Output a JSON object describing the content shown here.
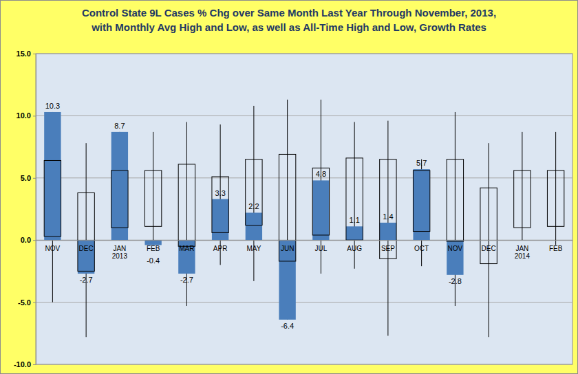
{
  "chart_data": {
    "type": "bar",
    "title": "Control State 9L Cases % Chg over Same Month Last Year Through November, 2013,\nwith Monthly Avg High and Low, as well as All-Time High and Low,  Growth Rates",
    "categories": [
      "NOV",
      "DEC",
      "JAN 2013",
      "FEB",
      "MAR",
      "APR",
      "MAY",
      "JUN",
      "JUL",
      "AUG",
      "SEP",
      "OCT",
      "NOV",
      "DEC",
      "JAN 2014",
      "FEB"
    ],
    "values": [
      10.3,
      -2.7,
      8.7,
      -0.4,
      -2.7,
      3.3,
      2.2,
      -6.4,
      4.8,
      1.1,
      1.4,
      5.7,
      -2.8,
      null,
      null,
      null
    ],
    "color": "#4a7ebb",
    "avg_high": [
      6.4,
      3.8,
      5.6,
      5.6,
      6.1,
      5.1,
      6.5,
      6.9,
      5.8,
      6.6,
      6.5,
      5.6,
      6.5,
      4.2,
      5.6,
      5.6
    ],
    "avg_low": [
      0.3,
      -2.5,
      1.0,
      1.1,
      -0.5,
      0.6,
      1.2,
      -1.7,
      0.4,
      0.0,
      -1.5,
      0.7,
      -0.1,
      -1.9,
      1.0,
      1.1
    ],
    "all_time_high": [
      10.3,
      7.8,
      8.7,
      8.7,
      9.5,
      9.3,
      10.8,
      11.3,
      11.3,
      9.5,
      9.6,
      6.5,
      10.3,
      7.8,
      8.7,
      8.7
    ],
    "all_time_low": [
      -5.0,
      -7.8,
      0.0,
      -0.4,
      -5.3,
      -2.0,
      -3.3,
      -6.4,
      -2.7,
      -2.3,
      -7.7,
      -2.1,
      -5.3,
      -7.8,
      0.0,
      -0.4
    ],
    "ylim": [
      -10,
      15
    ],
    "yticks": [
      {
        "value": -10,
        "label": "-10.0"
      },
      {
        "value": -5,
        "label": "-5.0"
      },
      {
        "value": 0,
        "label": "0.0"
      },
      {
        "value": 5,
        "label": "5.0"
      },
      {
        "value": 10,
        "label": "10.0"
      },
      {
        "value": 15,
        "label": "15.0"
      }
    ],
    "grid": true,
    "data_labels": true
  }
}
